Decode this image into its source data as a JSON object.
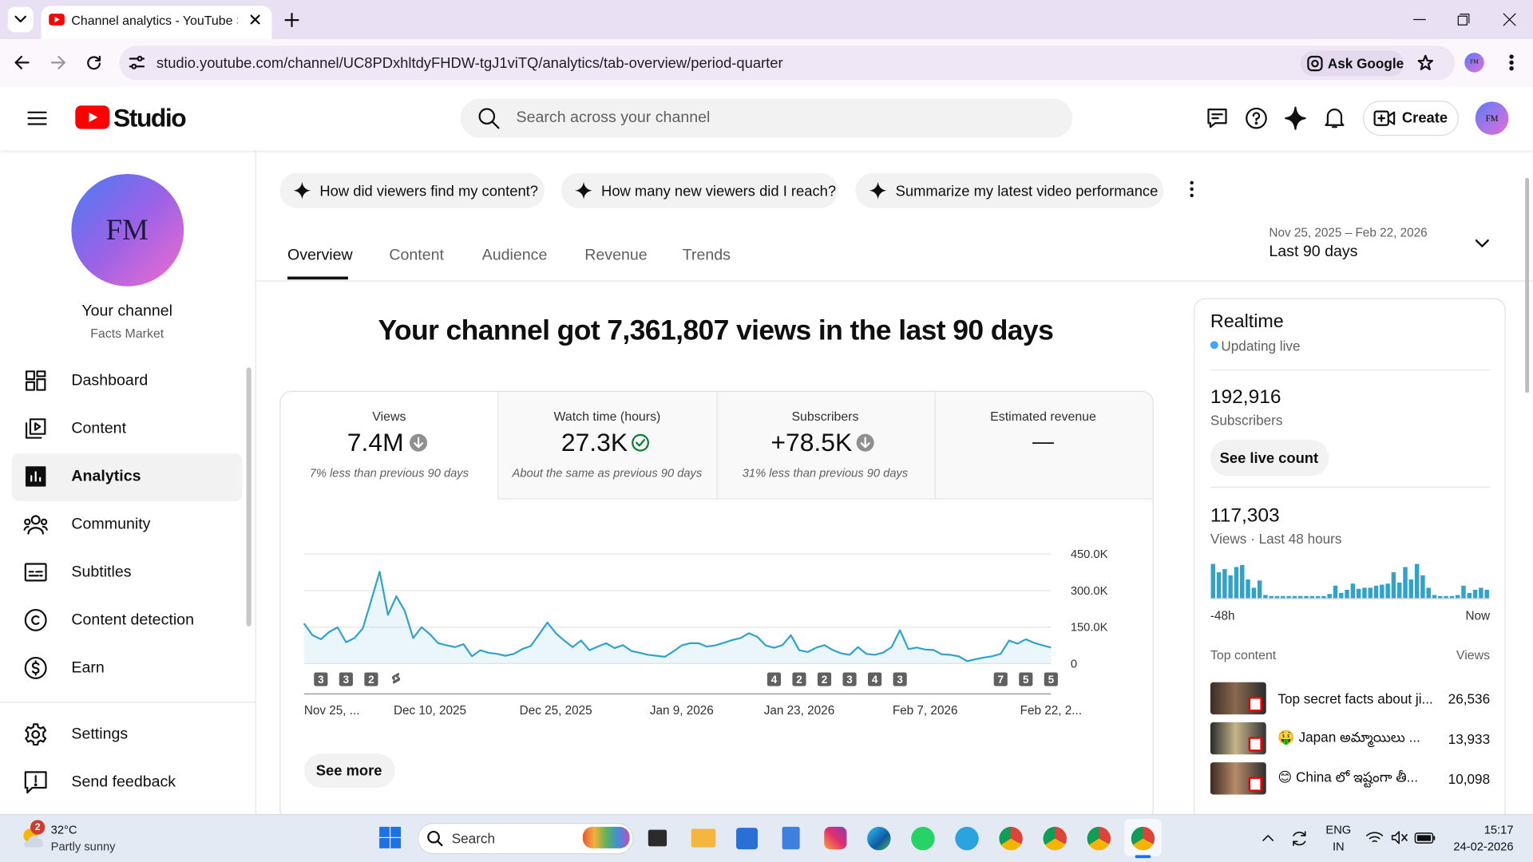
{
  "browser": {
    "tab_title": "Channel analytics - YouTube Studio",
    "url": "studio.youtube.com/channel/UC8PDxhltdyFHDW-tgJ1viTQ/analytics/tab-overview/period-quarter",
    "ask_google": "Ask Google",
    "profile": "FM"
  },
  "header": {
    "logo": "Studio",
    "search_placeholder": "Search across your channel",
    "create": "Create",
    "avatar": "FM"
  },
  "sidebar": {
    "avatar": "FM",
    "channel_label": "Your channel",
    "channel_name": "Facts Market",
    "nav": [
      "Dashboard",
      "Content",
      "Analytics",
      "Community",
      "Subtitles",
      "Content detection",
      "Earn"
    ],
    "bottom": [
      "Settings",
      "Send feedback"
    ]
  },
  "suggestions": [
    "How did viewers find my content?",
    "How many new viewers did I reach?",
    "Summarize my latest video performance"
  ],
  "tabs": [
    "Overview",
    "Content",
    "Audience",
    "Revenue",
    "Trends"
  ],
  "period": {
    "range": "Nov 25, 2025 – Feb 22, 2026",
    "label": "Last 90 days"
  },
  "headline": "Your channel got 7,361,807 views in the last 90 days",
  "metrics": [
    {
      "label": "Views",
      "value": "7.4M",
      "note": "7% less than previous 90 days"
    },
    {
      "label": "Watch time (hours)",
      "value": "27.3K",
      "note": "About the same as previous 90 days"
    },
    {
      "label": "Subscribers",
      "value": "+78.5K",
      "note": "31% less than previous 90 days"
    },
    {
      "label": "Estimated revenue",
      "value": "—"
    }
  ],
  "chart": {
    "type": "line",
    "color": "#2fa3cc",
    "values": [
      165000,
      117000,
      100000,
      130000,
      149000,
      88000,
      105000,
      145000,
      260000,
      378000,
      200000,
      277000,
      217000,
      105000,
      150000,
      120000,
      84000,
      75000,
      68000,
      80000,
      30000,
      55000,
      44000,
      40000,
      32000,
      40000,
      60000,
      72000,
      120000,
      169000,
      125000,
      95000,
      68000,
      95000,
      55000,
      70000,
      84000,
      64000,
      76000,
      52000,
      44000,
      36000,
      32000,
      28000,
      50000,
      75000,
      84000,
      84000,
      70000,
      75000,
      85000,
      97000,
      105000,
      125000,
      110000,
      75000,
      65000,
      76000,
      117000,
      55000,
      48000,
      65000,
      76000,
      56000,
      42000,
      36000,
      68000,
      40000,
      36000,
      45000,
      68000,
      137000,
      60000,
      66000,
      58000,
      56000,
      38000,
      36000,
      30000,
      10000,
      18000,
      25000,
      30000,
      40000,
      95000,
      82000,
      100000,
      85000,
      75000,
      66000
    ],
    "uploads": [
      null,
      null,
      3,
      null,
      null,
      3,
      null,
      null,
      2,
      null,
      null,
      null,
      null,
      null,
      null,
      null,
      null,
      null,
      null,
      null,
      null,
      null,
      null,
      null,
      null,
      null,
      null,
      null,
      null,
      null,
      null,
      null,
      null,
      null,
      null,
      null,
      null,
      null,
      null,
      null,
      null,
      null,
      null,
      null,
      null,
      null,
      null,
      null,
      null,
      null,
      null,
      null,
      null,
      null,
      null,
      null,
      4,
      null,
      null,
      2,
      null,
      null,
      2,
      null,
      null,
      3,
      null,
      null,
      4,
      null,
      null,
      3,
      null,
      null,
      null,
      null,
      null,
      null,
      null,
      null,
      null,
      null,
      null,
      7,
      null,
      null,
      5,
      null,
      null,
      5
    ],
    "xlim": [
      0,
      89
    ],
    "xticks": [
      {
        "value": 0,
        "label": "Nov 25, ..."
      },
      {
        "value": 15,
        "label": "Dec 10, 2025"
      },
      {
        "value": 30,
        "label": "Dec 25, 2025"
      },
      {
        "value": 45,
        "label": "Jan 9, 2026"
      },
      {
        "value": 59,
        "label": "Jan 23, 2026"
      },
      {
        "value": 74,
        "label": "Feb 7, 2026"
      },
      {
        "value": 89,
        "label": "Feb 22, 2..."
      }
    ],
    "ylim": [
      0,
      450000
    ],
    "yticks": [
      0,
      {
        "value": 150000,
        "label": "150.0K"
      },
      {
        "value": 300000,
        "label": "300.0K"
      },
      {
        "value": 450000,
        "label": "450.0K"
      }
    ],
    "grid": true
  },
  "see_more": "See more",
  "realtime": {
    "title": "Realtime",
    "status": "Updating live",
    "subscribers": "192,916",
    "subscribers_label": "Subscribers",
    "live_count_button": "See live count",
    "views": "117,303",
    "views_label": "Views · Last 48 hours",
    "bars": {
      "type": "bar",
      "color": "#2fa3cc",
      "values": [
        6930,
        5250,
        5880,
        4620,
        6300,
        6720,
        3780,
        2100,
        3570,
        630,
        420,
        420,
        420,
        420,
        420,
        420,
        420,
        420,
        420,
        420,
        840,
        2520,
        1050,
        1680,
        2940,
        1890,
        2100,
        2100,
        2520,
        2730,
        2940,
        5250,
        3150,
        6300,
        3780,
        6930,
        4620,
        2100,
        630,
        420,
        420,
        420,
        630,
        2520,
        1050,
        1680,
        2100,
        1680
      ],
      "start_label": "-48h",
      "end_label": "Now"
    },
    "top_content_label": "Top content",
    "top_content_views_label": "Views",
    "top_content": [
      {
        "title": "Top secret facts about ji...",
        "views": "26,536"
      },
      {
        "title": "🤑 Japan అమ్మాయిలు ...",
        "views": "13,933"
      },
      {
        "title": "😊 China లో ఇష్టంగా తీ...",
        "views": "10,098"
      }
    ]
  },
  "taskbar": {
    "weather_badge": "2",
    "temperature": "32°C",
    "weather": "Partly sunny",
    "search": "Search",
    "language": "ENG",
    "region": "IN",
    "time": "15:17",
    "date": "24-02-2026"
  }
}
